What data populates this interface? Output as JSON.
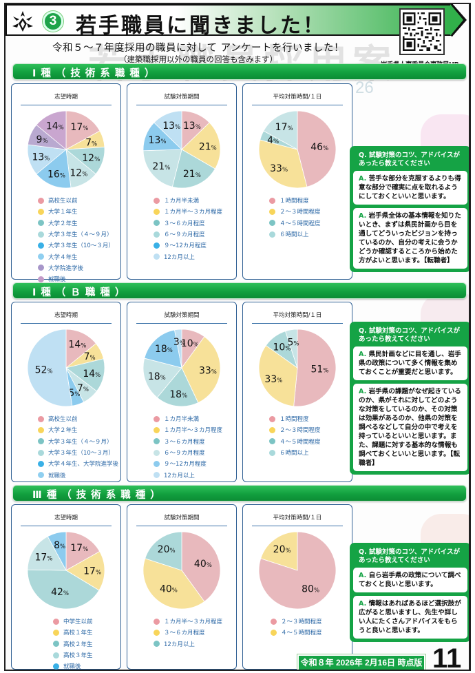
{
  "header": {
    "section_number": "3",
    "title": "若手職員に聞きました！",
    "qr_caption": "岩手県人事委員会事務局HP"
  },
  "intro": {
    "main": "令和５～７年度採用の職員に対して アンケートを行いました！",
    "sub": "（建築職採用以外の職員の回答も含みます）"
  },
  "background": {
    "watermark": "若手職員採用案",
    "year_fragment": "26"
  },
  "sections": [
    {
      "label": "Ⅰ種（技術系職種）",
      "charts": [
        {
          "title": "志望時期"
        },
        {
          "title": "試験対策期間"
        },
        {
          "title": "平均対策時間/１日"
        }
      ],
      "qa": {
        "question": "Q. 試験対策のコツ、アドバイスがあったら教えてください",
        "answers": [
          "苦手な部分を克服するよりも得意な部分で確実に点を取れるようにしておくといいと思います。",
          "岩手県全体の基本情報を知りたいとき、まずは県民計画から目を通してどういったビジョンを持っているのか、自分の考えに会うかどうか確認するところから始めた方がよいと思います。【転職者】"
        ]
      }
    },
    {
      "label": "Ⅰ種（Ｂ職種）",
      "charts": [
        {
          "title": "志望時期"
        },
        {
          "title": "試験対策期間"
        },
        {
          "title": "平均対策時間/１日"
        }
      ],
      "qa": {
        "question": "Q. 試験対策のコツ、アドバイスがあったら教えてください",
        "answers": [
          "県民計画などに目を通し、岩手県の政策について多く情報を集めておくことが重要だと思います。",
          "岩手県の課題がなぜ起きているのか、県がそれに対してどのような対策をしているのか、その対策は効果があるのか、他県の対策を調べるなどして自分の中で考えを持っているといいと思います。また、課題に対する基本的な情報も調べておくといいと思います。【転職者】"
        ]
      }
    },
    {
      "label": "Ⅲ種（技術系職種）",
      "charts": [
        {
          "title": "志望時期"
        },
        {
          "title": "試験対策期間"
        },
        {
          "title": "平均対策時間/１日"
        }
      ],
      "qa": {
        "question": "Q. 試験対策のコツ、アドバイスがあったら教えてください",
        "answers": [
          "自ら岩手県の政策について調べておくと良いと思います。",
          "情報はあればあるほど選択肢が広がると思いますし、先生や詳しい人にたくさんアドバイスをもらうと良いと思います。"
        ]
      }
    }
  ],
  "answer_prefix": "A.",
  "footer": {
    "date_badge": "令和８年 2026年 2月16日 時点版",
    "page_number": "11"
  },
  "colors": {
    "green": "#15a345",
    "card_border": "#2e5f93",
    "legend_text": "#2c68a6"
  },
  "chart_data": [
    {
      "type": "pie",
      "section": "Ⅰ種（技術系職種）",
      "title": "志望時期",
      "categories": [
        "高校生以前",
        "大学１年生",
        "大学２年生",
        "大学３年生（４～９月）",
        "大学３年生（10～３月）",
        "大学４年生",
        "大学院進学後",
        "就職後"
      ],
      "values": [
        17,
        7,
        12,
        12,
        16,
        13,
        9,
        14
      ],
      "slice_colors": [
        "#e8b9bd",
        "#f7e199",
        "#acd8d9",
        "#c7e4e6",
        "#8ccbee",
        "#bfe0f3",
        "#b9a9d0",
        "#c9a6cf"
      ],
      "legend_colors": [
        "#eb9aa2",
        "#f8d55a",
        "#7cc4c4",
        "#a9d9db",
        "#39b0e6",
        "#8fcff0",
        "#a796c9",
        "#c39bc8"
      ]
    },
    {
      "type": "pie",
      "section": "Ⅰ種（技術系職種）",
      "title": "試験対策期間",
      "categories": [
        "１カ月半未満",
        "１カ月半～３カ月程度",
        "３～６カ月程度",
        "６～９カ月程度",
        "９～12カ月程度",
        "12カ月以上"
      ],
      "values": [
        13,
        21,
        21,
        21,
        13,
        13
      ],
      "slice_colors": [
        "#e8b9bd",
        "#f7e199",
        "#acd8d9",
        "#c7e4e6",
        "#8ccbee",
        "#bfe0f3"
      ],
      "legend_colors": [
        "#eb9aa2",
        "#f8d55a",
        "#7cc4c4",
        "#a9d9db",
        "#39b0e6",
        "#bfe0f3"
      ]
    },
    {
      "type": "pie",
      "section": "Ⅰ種（技術系職種）",
      "title": "平均対策時間/１日",
      "categories": [
        "１時間程度",
        "２～３時間程度",
        "４～５時間程度",
        "６時間以上"
      ],
      "values": [
        46,
        33,
        4,
        17
      ],
      "slice_colors": [
        "#e8b9bd",
        "#f7e199",
        "#acd8d9",
        "#c7e4e6"
      ],
      "legend_colors": [
        "#eb9aa2",
        "#f8d55a",
        "#7cc4c4",
        "#a9d9db"
      ]
    },
    {
      "type": "pie",
      "section": "Ⅰ種（Ｂ職種）",
      "title": "志望時期",
      "categories": [
        "高校生以前",
        "大学２年生",
        "大学３年生（４～９月）",
        "大学３年生（10～３月）",
        "大学４年生、大学院進学後",
        "就職後"
      ],
      "values": [
        14,
        7,
        14,
        7,
        5,
        52
      ],
      "slice_colors": [
        "#e8b9bd",
        "#f7e199",
        "#acd8d9",
        "#c7e4e6",
        "#8ccbee",
        "#bfe0f3"
      ],
      "legend_colors": [
        "#eb9aa2",
        "#f8d55a",
        "#7cc4c4",
        "#a9d9db",
        "#39b0e6",
        "#8fcff0"
      ]
    },
    {
      "type": "pie",
      "section": "Ⅰ種（Ｂ職種）",
      "title": "試験対策期間",
      "categories": [
        "１カ月半未満",
        "１カ月半～３カ月程度",
        "３～６カ月程度",
        "６～９カ月程度",
        "９～12カ月程度",
        "12カ月以上"
      ],
      "values": [
        10,
        33,
        18,
        18,
        18,
        3
      ],
      "slice_colors": [
        "#e8b9bd",
        "#f7e199",
        "#acd8d9",
        "#c7e4e6",
        "#8ccbee",
        "#bfe0f3"
      ],
      "legend_colors": [
        "#eb9aa2",
        "#f8d55a",
        "#7cc4c4",
        "#c7e4e6",
        "#8ccbee",
        "#bfe0f3"
      ]
    },
    {
      "type": "pie",
      "section": "Ⅰ種（Ｂ職種）",
      "title": "平均対策時間/１日",
      "categories": [
        "１時間程度",
        "２～３時間程度",
        "４～５時間程度",
        "６時間以上"
      ],
      "values": [
        51,
        33,
        10,
        5
      ],
      "slice_colors": [
        "#e8b9bd",
        "#f7e199",
        "#acd8d9",
        "#c7e4e6"
      ],
      "legend_colors": [
        "#eb9aa2",
        "#f8d55a",
        "#7cc4c4",
        "#a9d9db"
      ]
    },
    {
      "type": "pie",
      "section": "Ⅲ種（技術系職種）",
      "title": "志望時期",
      "categories": [
        "中学生以前",
        "高校１年生",
        "高校２年生",
        "高校３年生",
        "就職後"
      ],
      "values": [
        17,
        17,
        42,
        17,
        8
      ],
      "slice_colors": [
        "#e8b9bd",
        "#f7e199",
        "#acd8d9",
        "#c7e4e6",
        "#8ccbee"
      ],
      "legend_colors": [
        "#eb9aa2",
        "#f8d55a",
        "#7cc4c4",
        "#a9d9db",
        "#39b0e6"
      ]
    },
    {
      "type": "pie",
      "section": "Ⅲ種（技術系職種）",
      "title": "試験対策期間",
      "categories": [
        "１カ月半～３カ月程度",
        "３～６カ月程度",
        "12カ月以上"
      ],
      "values": [
        40,
        40,
        20
      ],
      "slice_colors": [
        "#e8b9bd",
        "#f7e199",
        "#acd8d9"
      ],
      "legend_colors": [
        "#eb9aa2",
        "#f8d55a",
        "#7cc4c4"
      ]
    },
    {
      "type": "pie",
      "section": "Ⅲ種（技術系職種）",
      "title": "平均対策時間/１日",
      "categories": [
        "２～３時間程度",
        "４～５時間程度"
      ],
      "values": [
        80,
        20
      ],
      "slice_colors": [
        "#e8b9bd",
        "#f7e199"
      ],
      "legend_colors": [
        "#eb9aa2",
        "#f8d55a"
      ]
    }
  ]
}
